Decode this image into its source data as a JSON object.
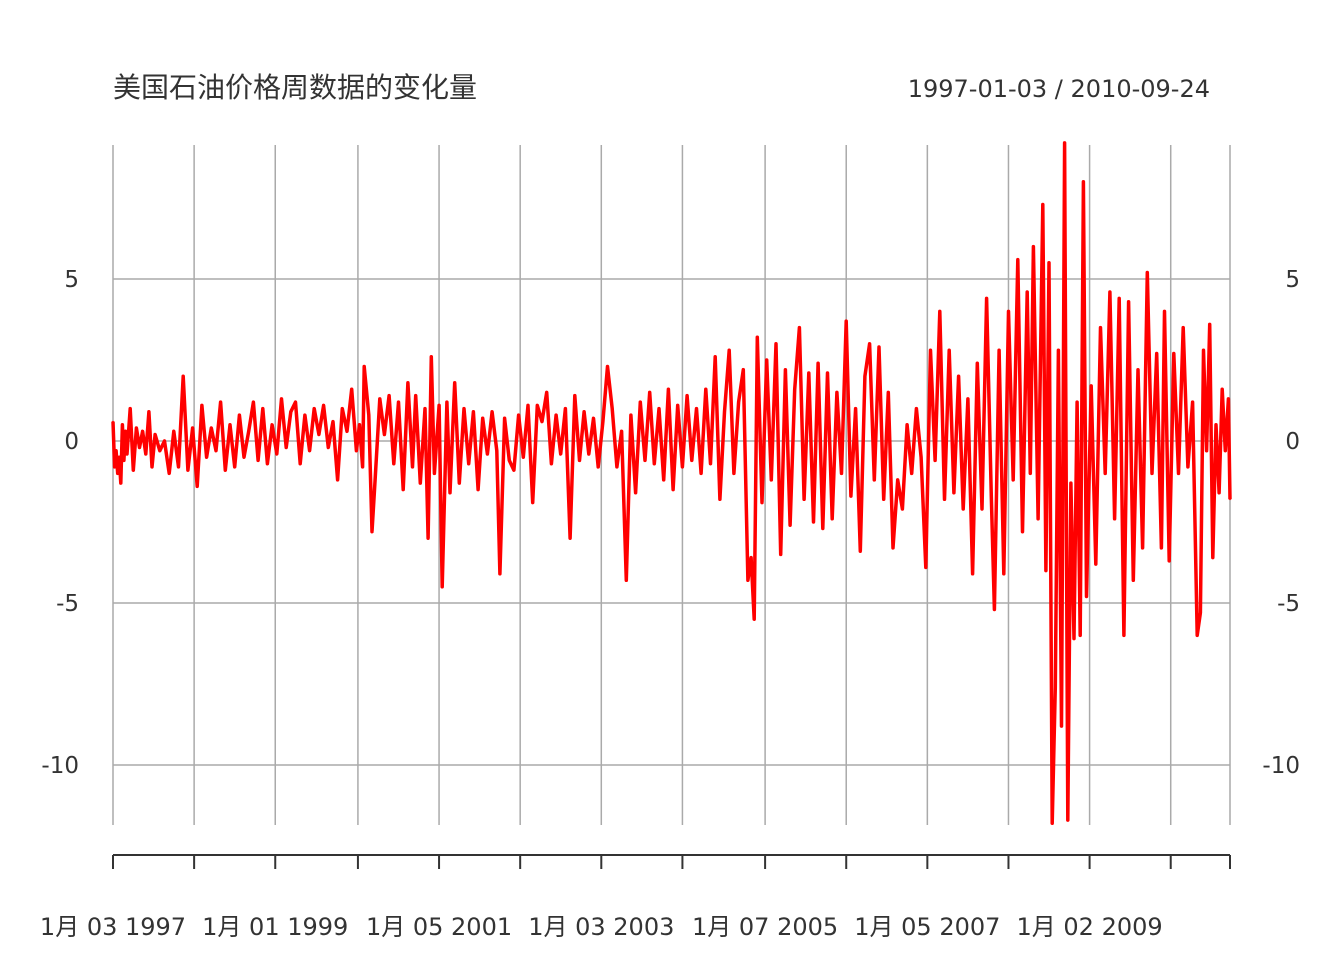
{
  "chart_data": {
    "type": "line",
    "title": "美国石油价格周数据的变化量",
    "date_range_label": "1997-01-03 / 2010-09-24",
    "xlabel": "",
    "ylabel": "",
    "x_start": "1997-01-03",
    "x_end": "2010-09-24",
    "ylim": [
      -12,
      9
    ],
    "y_ticks": [
      5,
      0,
      -5,
      -10
    ],
    "y_tick_labels": [
      "5",
      "0",
      "-5",
      "-10"
    ],
    "x_tick_dates": [
      "1997-01-03",
      "1998-01-02",
      "1999-01-01",
      "2000-01-07",
      "2001-01-05",
      "2002-01-04",
      "2003-01-03",
      "2004-01-02",
      "2005-01-07",
      "2006-01-06",
      "2007-01-05",
      "2008-01-04",
      "2009-01-02",
      "2010-01-01",
      "2010-09-24"
    ],
    "x_labels": [
      {
        "date": "1997-01-03",
        "text": "1月 03 1997"
      },
      {
        "date": "1999-01-01",
        "text": "1月 01 1999"
      },
      {
        "date": "2001-01-05",
        "text": "1月 05 2001"
      },
      {
        "date": "2003-01-03",
        "text": "1月 03 2003"
      },
      {
        "date": "2005-01-07",
        "text": "1月 07 2005"
      },
      {
        "date": "2007-01-05",
        "text": "1月 05 2007"
      },
      {
        "date": "2009-01-02",
        "text": "1月 02 2009"
      }
    ],
    "grid": true,
    "series": [
      {
        "color": "#ff0000",
        "points": [
          [
            "1997-01-03",
            0.6
          ],
          [
            "1997-01-10",
            -0.8
          ],
          [
            "1997-01-17",
            -0.3
          ],
          [
            "1997-01-24",
            -1.0
          ],
          [
            "1997-01-31",
            -0.5
          ],
          [
            "1997-02-07",
            -1.3
          ],
          [
            "1997-02-14",
            0.5
          ],
          [
            "1997-02-21",
            -0.6
          ],
          [
            "1997-02-28",
            0.3
          ],
          [
            "1997-03-07",
            -0.4
          ],
          [
            "1997-03-21",
            1.0
          ],
          [
            "1997-04-04",
            -0.9
          ],
          [
            "1997-04-18",
            0.4
          ],
          [
            "1997-05-02",
            -0.2
          ],
          [
            "1997-05-16",
            0.3
          ],
          [
            "1997-05-30",
            -0.4
          ],
          [
            "1997-06-13",
            0.9
          ],
          [
            "1997-06-27",
            -0.8
          ],
          [
            "1997-07-11",
            0.2
          ],
          [
            "1997-08-01",
            -0.3
          ],
          [
            "1997-08-22",
            0.0
          ],
          [
            "1997-09-12",
            -1.0
          ],
          [
            "1997-10-03",
            0.3
          ],
          [
            "1997-10-24",
            -0.8
          ],
          [
            "1997-11-14",
            2.0
          ],
          [
            "1997-12-05",
            -0.9
          ],
          [
            "1997-12-26",
            0.4
          ],
          [
            "1998-01-16",
            -1.4
          ],
          [
            "1998-02-06",
            1.1
          ],
          [
            "1998-02-27",
            -0.5
          ],
          [
            "1998-03-20",
            0.4
          ],
          [
            "1998-04-10",
            -0.3
          ],
          [
            "1998-05-01",
            1.2
          ],
          [
            "1998-05-22",
            -0.9
          ],
          [
            "1998-06-12",
            0.5
          ],
          [
            "1998-07-03",
            -0.8
          ],
          [
            "1998-07-24",
            0.8
          ],
          [
            "1998-08-14",
            -0.5
          ],
          [
            "1998-09-04",
            0.3
          ],
          [
            "1998-09-25",
            1.2
          ],
          [
            "1998-10-16",
            -0.6
          ],
          [
            "1998-11-06",
            1.0
          ],
          [
            "1998-11-27",
            -0.7
          ],
          [
            "1998-12-18",
            0.5
          ],
          [
            "1999-01-08",
            -0.4
          ],
          [
            "1999-01-29",
            1.3
          ],
          [
            "1999-02-19",
            -0.2
          ],
          [
            "1999-03-12",
            0.9
          ],
          [
            "1999-04-02",
            1.2
          ],
          [
            "1999-04-23",
            -0.7
          ],
          [
            "1999-05-14",
            0.8
          ],
          [
            "1999-06-04",
            -0.3
          ],
          [
            "1999-06-25",
            1.0
          ],
          [
            "1999-07-16",
            0.2
          ],
          [
            "1999-08-06",
            1.1
          ],
          [
            "1999-08-27",
            -0.2
          ],
          [
            "1999-09-17",
            0.6
          ],
          [
            "1999-10-08",
            -1.2
          ],
          [
            "1999-10-29",
            1.0
          ],
          [
            "1999-11-19",
            0.3
          ],
          [
            "1999-12-10",
            1.6
          ],
          [
            "1999-12-31",
            -0.3
          ],
          [
            "2000-01-14",
            0.5
          ],
          [
            "2000-01-28",
            -0.8
          ],
          [
            "2000-02-04",
            2.3
          ],
          [
            "2000-02-25",
            0.8
          ],
          [
            "2000-03-10",
            -2.8
          ],
          [
            "2000-03-24",
            -1.2
          ],
          [
            "2000-04-14",
            1.3
          ],
          [
            "2000-05-05",
            0.2
          ],
          [
            "2000-05-26",
            1.4
          ],
          [
            "2000-06-16",
            -0.7
          ],
          [
            "2000-07-07",
            1.2
          ],
          [
            "2000-07-28",
            -1.5
          ],
          [
            "2000-08-18",
            1.8
          ],
          [
            "2000-09-08",
            -0.8
          ],
          [
            "2000-09-22",
            1.4
          ],
          [
            "2000-10-13",
            -1.3
          ],
          [
            "2000-11-03",
            1.0
          ],
          [
            "2000-11-17",
            -3.0
          ],
          [
            "2000-12-01",
            2.6
          ],
          [
            "2000-12-15",
            -1.0
          ],
          [
            "2001-01-05",
            1.1
          ],
          [
            "2001-01-19",
            -4.5
          ],
          [
            "2001-02-09",
            1.2
          ],
          [
            "2001-02-23",
            -1.6
          ],
          [
            "2001-03-16",
            1.8
          ],
          [
            "2001-04-06",
            -1.3
          ],
          [
            "2001-04-27",
            1.0
          ],
          [
            "2001-05-18",
            -0.7
          ],
          [
            "2001-06-08",
            0.9
          ],
          [
            "2001-06-29",
            -1.5
          ],
          [
            "2001-07-20",
            0.7
          ],
          [
            "2001-08-10",
            -0.4
          ],
          [
            "2001-08-31",
            0.9
          ],
          [
            "2001-09-21",
            -0.3
          ],
          [
            "2001-10-05",
            -4.1
          ],
          [
            "2001-10-26",
            0.7
          ],
          [
            "2001-11-16",
            -0.6
          ],
          [
            "2001-12-07",
            -0.9
          ],
          [
            "2001-12-28",
            0.8
          ],
          [
            "2002-01-18",
            -0.5
          ],
          [
            "2002-02-08",
            1.1
          ],
          [
            "2002-03-01",
            -1.9
          ],
          [
            "2002-03-22",
            1.1
          ],
          [
            "2002-04-12",
            0.6
          ],
          [
            "2002-05-03",
            1.5
          ],
          [
            "2002-05-24",
            -0.7
          ],
          [
            "2002-06-14",
            0.8
          ],
          [
            "2002-07-05",
            -0.4
          ],
          [
            "2002-07-26",
            1.0
          ],
          [
            "2002-08-16",
            -3.0
          ],
          [
            "2002-09-06",
            1.4
          ],
          [
            "2002-09-27",
            -0.6
          ],
          [
            "2002-10-18",
            0.9
          ],
          [
            "2002-11-08",
            -0.4
          ],
          [
            "2002-11-29",
            0.7
          ],
          [
            "2002-12-20",
            -0.8
          ],
          [
            "2003-01-10",
            0.6
          ],
          [
            "2003-01-31",
            2.3
          ],
          [
            "2003-02-21",
            1.0
          ],
          [
            "2003-03-14",
            -0.8
          ],
          [
            "2003-04-04",
            0.3
          ],
          [
            "2003-04-25",
            -4.3
          ],
          [
            "2003-05-16",
            0.8
          ],
          [
            "2003-06-06",
            -1.6
          ],
          [
            "2003-06-27",
            1.2
          ],
          [
            "2003-07-18",
            -0.6
          ],
          [
            "2003-08-08",
            1.5
          ],
          [
            "2003-08-29",
            -0.7
          ],
          [
            "2003-09-19",
            1.0
          ],
          [
            "2003-10-10",
            -1.2
          ],
          [
            "2003-10-31",
            1.6
          ],
          [
            "2003-11-21",
            -1.5
          ],
          [
            "2003-12-12",
            1.1
          ],
          [
            "2004-01-02",
            -0.8
          ],
          [
            "2004-01-23",
            1.4
          ],
          [
            "2004-02-13",
            -0.6
          ],
          [
            "2004-03-05",
            1.0
          ],
          [
            "2004-03-26",
            -1.0
          ],
          [
            "2004-04-16",
            1.6
          ],
          [
            "2004-05-07",
            -0.7
          ],
          [
            "2004-05-28",
            2.6
          ],
          [
            "2004-06-18",
            -1.8
          ],
          [
            "2004-07-09",
            0.9
          ],
          [
            "2004-07-30",
            2.8
          ],
          [
            "2004-08-20",
            -1.0
          ],
          [
            "2004-09-10",
            1.2
          ],
          [
            "2004-10-01",
            2.2
          ],
          [
            "2004-10-22",
            -4.3
          ],
          [
            "2004-11-05",
            -3.6
          ],
          [
            "2004-11-19",
            -5.5
          ],
          [
            "2004-12-03",
            3.2
          ],
          [
            "2004-12-24",
            -1.9
          ],
          [
            "2005-01-14",
            2.5
          ],
          [
            "2005-02-04",
            -1.2
          ],
          [
            "2005-02-25",
            3.0
          ],
          [
            "2005-03-18",
            -3.5
          ],
          [
            "2005-04-08",
            2.2
          ],
          [
            "2005-04-29",
            -2.6
          ],
          [
            "2005-05-20",
            1.6
          ],
          [
            "2005-06-10",
            3.5
          ],
          [
            "2005-07-01",
            -1.8
          ],
          [
            "2005-07-22",
            2.1
          ],
          [
            "2005-08-12",
            -2.5
          ],
          [
            "2005-09-02",
            2.4
          ],
          [
            "2005-09-23",
            -2.7
          ],
          [
            "2005-10-14",
            2.1
          ],
          [
            "2005-11-04",
            -2.4
          ],
          [
            "2005-11-25",
            1.5
          ],
          [
            "2005-12-16",
            -1.0
          ],
          [
            "2006-01-06",
            3.7
          ],
          [
            "2006-01-27",
            -1.7
          ],
          [
            "2006-02-17",
            1.0
          ],
          [
            "2006-03-10",
            -3.4
          ],
          [
            "2006-03-31",
            2.0
          ],
          [
            "2006-04-21",
            3.0
          ],
          [
            "2006-05-12",
            -1.2
          ],
          [
            "2006-06-02",
            2.9
          ],
          [
            "2006-06-23",
            -1.8
          ],
          [
            "2006-07-14",
            1.5
          ],
          [
            "2006-08-04",
            -3.3
          ],
          [
            "2006-08-25",
            -1.2
          ],
          [
            "2006-09-15",
            -2.1
          ],
          [
            "2006-10-06",
            0.5
          ],
          [
            "2006-10-27",
            -1.0
          ],
          [
            "2006-11-17",
            1.0
          ],
          [
            "2006-12-08",
            -0.5
          ],
          [
            "2006-12-29",
            -3.9
          ],
          [
            "2007-01-19",
            2.8
          ],
          [
            "2007-02-09",
            -0.6
          ],
          [
            "2007-03-02",
            4.0
          ],
          [
            "2007-03-23",
            -1.8
          ],
          [
            "2007-04-13",
            2.8
          ],
          [
            "2007-05-04",
            -1.6
          ],
          [
            "2007-05-25",
            2.0
          ],
          [
            "2007-06-15",
            -2.1
          ],
          [
            "2007-07-06",
            1.3
          ],
          [
            "2007-07-27",
            -4.1
          ],
          [
            "2007-08-17",
            2.4
          ],
          [
            "2007-09-07",
            -2.1
          ],
          [
            "2007-09-28",
            4.4
          ],
          [
            "2007-10-19",
            -1.7
          ],
          [
            "2007-11-02",
            -5.2
          ],
          [
            "2007-11-23",
            2.8
          ],
          [
            "2007-12-14",
            -4.1
          ],
          [
            "2008-01-04",
            4.0
          ],
          [
            "2008-01-25",
            -1.2
          ],
          [
            "2008-02-15",
            5.6
          ],
          [
            "2008-03-07",
            -2.8
          ],
          [
            "2008-03-28",
            4.6
          ],
          [
            "2008-04-11",
            -1.0
          ],
          [
            "2008-04-25",
            6.0
          ],
          [
            "2008-05-16",
            -2.4
          ],
          [
            "2008-06-06",
            7.3
          ],
          [
            "2008-06-20",
            -4.0
          ],
          [
            "2008-07-04",
            5.5
          ],
          [
            "2008-07-18",
            -11.8
          ],
          [
            "2008-08-01",
            -7.6
          ],
          [
            "2008-08-15",
            2.8
          ],
          [
            "2008-08-29",
            -8.8
          ],
          [
            "2008-09-12",
            9.2
          ],
          [
            "2008-09-26",
            -11.7
          ],
          [
            "2008-10-10",
            -1.3
          ],
          [
            "2008-10-24",
            -6.1
          ],
          [
            "2008-11-07",
            1.2
          ],
          [
            "2008-11-21",
            -6.0
          ],
          [
            "2008-12-05",
            8.0
          ],
          [
            "2008-12-19",
            -4.8
          ],
          [
            "2009-01-09",
            1.7
          ],
          [
            "2009-01-30",
            -3.8
          ],
          [
            "2009-02-20",
            3.5
          ],
          [
            "2009-03-13",
            -1.0
          ],
          [
            "2009-04-03",
            4.6
          ],
          [
            "2009-04-24",
            -2.4
          ],
          [
            "2009-05-15",
            4.4
          ],
          [
            "2009-06-05",
            -6.0
          ],
          [
            "2009-06-26",
            4.3
          ],
          [
            "2009-07-17",
            -4.3
          ],
          [
            "2009-08-07",
            2.2
          ],
          [
            "2009-08-28",
            -3.3
          ],
          [
            "2009-09-18",
            5.2
          ],
          [
            "2009-10-09",
            -1.0
          ],
          [
            "2009-10-30",
            2.7
          ],
          [
            "2009-11-20",
            -3.3
          ],
          [
            "2009-12-04",
            4.0
          ],
          [
            "2009-12-25",
            -3.7
          ],
          [
            "2010-01-15",
            2.7
          ],
          [
            "2010-02-05",
            -1.0
          ],
          [
            "2010-02-26",
            3.5
          ],
          [
            "2010-03-19",
            -0.8
          ],
          [
            "2010-04-09",
            1.2
          ],
          [
            "2010-04-30",
            -6.0
          ],
          [
            "2010-05-14",
            -5.3
          ],
          [
            "2010-05-28",
            2.8
          ],
          [
            "2010-06-11",
            -0.3
          ],
          [
            "2010-06-25",
            3.6
          ],
          [
            "2010-07-09",
            -3.6
          ],
          [
            "2010-07-23",
            0.5
          ],
          [
            "2010-08-06",
            -1.6
          ],
          [
            "2010-08-20",
            1.6
          ],
          [
            "2010-09-03",
            -0.3
          ],
          [
            "2010-09-17",
            1.3
          ],
          [
            "2010-09-24",
            -1.8
          ]
        ]
      }
    ]
  }
}
